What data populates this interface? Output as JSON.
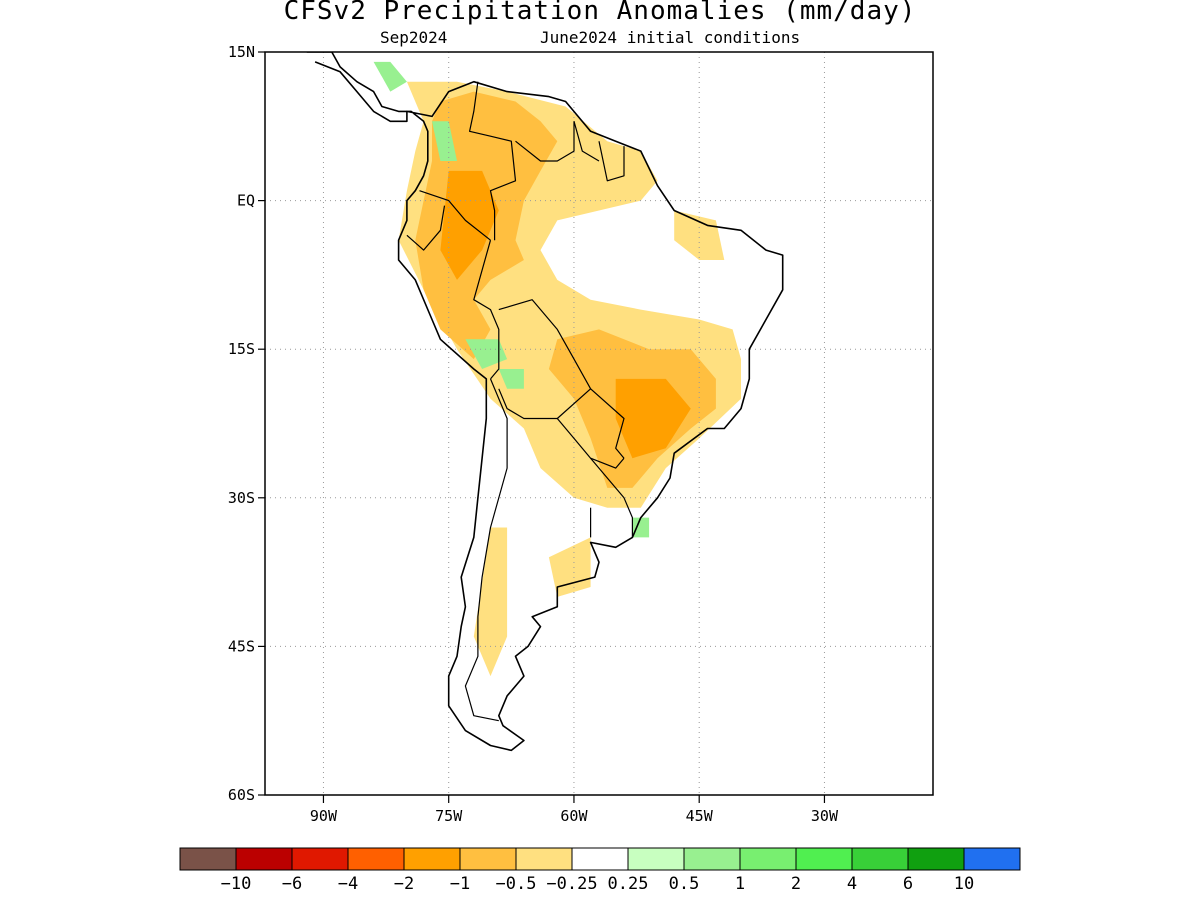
{
  "title": "CFSv2 Precipitation Anomalies (mm/day)",
  "subtitle_left": "Sep2024",
  "subtitle_right": "June2024 initial conditions",
  "map": {
    "lon_range": [
      -97,
      -17
    ],
    "lat_range": [
      -60,
      15
    ],
    "lon_ticks": [
      {
        "value": -90,
        "label": "90W"
      },
      {
        "value": -75,
        "label": "75W"
      },
      {
        "value": -60,
        "label": "60W"
      },
      {
        "value": -45,
        "label": "45W"
      },
      {
        "value": -30,
        "label": "30W"
      }
    ],
    "lat_ticks": [
      {
        "value": 15,
        "label": "15N"
      },
      {
        "value": 0,
        "label": "EQ"
      },
      {
        "value": -15,
        "label": "15S"
      },
      {
        "value": -30,
        "label": "30S"
      },
      {
        "value": -45,
        "label": "45S"
      },
      {
        "value": -60,
        "label": "60S"
      }
    ],
    "grid": "dotted"
  },
  "colorbar": {
    "colors": [
      "#7a5248",
      "#bb0000",
      "#e01800",
      "#ff6000",
      "#ffa000",
      "#ffbf40",
      "#ffe080",
      "#ffffff",
      "#c8ffc0",
      "#98f090",
      "#78ef70",
      "#50ef50",
      "#38d038",
      "#10a010",
      "#2070f0"
    ],
    "labels": [
      "−10",
      "−6",
      "−4",
      "−2",
      "−1",
      "−0.5",
      "−0.25",
      "0.25",
      "0.5",
      "1",
      "2",
      "4",
      "6",
      "10"
    ]
  },
  "chart_data": {
    "type": "heatmap",
    "title": "CFSv2 Precipitation Anomalies (mm/day)",
    "subtitle": "Sep2024  June2024 initial conditions",
    "units": "mm/day",
    "x_axis": "longitude",
    "y_axis": "latitude",
    "xlim": [
      -97,
      -17
    ],
    "ylim": [
      -60,
      15
    ],
    "levels": [
      -10,
      -6,
      -4,
      -2,
      -1,
      -0.5,
      -0.25,
      0.25,
      0.5,
      1,
      2,
      4,
      6,
      10
    ],
    "regions": [
      {
        "level": 6,
        "pts": [
          [
            -80,
            12
          ],
          [
            -74,
            12
          ],
          [
            -68,
            11
          ],
          [
            -61,
            9.5
          ],
          [
            -56,
            6
          ],
          [
            -52,
            5
          ],
          [
            -50,
            2
          ],
          [
            -52,
            0
          ],
          [
            -57,
            -1
          ],
          [
            -62,
            -2
          ],
          [
            -64,
            -5
          ],
          [
            -62,
            -8
          ],
          [
            -58,
            -10
          ],
          [
            -52,
            -11
          ],
          [
            -45,
            -12
          ],
          [
            -41,
            -13
          ],
          [
            -40,
            -16
          ],
          [
            -40,
            -20
          ],
          [
            -45,
            -24
          ],
          [
            -49,
            -27
          ],
          [
            -52,
            -31
          ],
          [
            -56,
            -31
          ],
          [
            -60,
            -30
          ],
          [
            -64,
            -27
          ],
          [
            -66,
            -23
          ],
          [
            -70,
            -20
          ],
          [
            -74,
            -15
          ],
          [
            -78,
            -9
          ],
          [
            -81,
            -4
          ],
          [
            -80,
            1
          ],
          [
            -79,
            5
          ],
          [
            -78,
            8
          ]
        ]
      },
      {
        "level": 6,
        "pts": [
          [
            -48,
            -1
          ],
          [
            -43,
            -2
          ],
          [
            -42,
            -6
          ],
          [
            -45,
            -6
          ],
          [
            -48,
            -4
          ]
        ]
      },
      {
        "level": 6,
        "pts": [
          [
            -63,
            -36
          ],
          [
            -58,
            -34
          ],
          [
            -58,
            -39
          ],
          [
            -62,
            -40
          ]
        ]
      },
      {
        "level": 6,
        "pts": [
          [
            -70,
            -33
          ],
          [
            -68,
            -33
          ],
          [
            -68,
            -44
          ],
          [
            -70,
            -48
          ],
          [
            -72,
            -44
          ]
        ]
      },
      {
        "level": 5,
        "pts": [
          [
            -76,
            10
          ],
          [
            -72,
            11
          ],
          [
            -67,
            10
          ],
          [
            -64,
            8
          ],
          [
            -62,
            6
          ],
          [
            -64,
            3
          ],
          [
            -66,
            0
          ],
          [
            -67,
            -4
          ],
          [
            -66,
            -6
          ],
          [
            -70,
            -8
          ],
          [
            -72,
            -10
          ],
          [
            -70,
            -13
          ],
          [
            -72,
            -16
          ],
          [
            -76,
            -13
          ],
          [
            -78,
            -9
          ],
          [
            -79,
            -4
          ],
          [
            -78,
            0
          ],
          [
            -77,
            4
          ],
          [
            -77,
            8
          ]
        ]
      },
      {
        "level": 5,
        "pts": [
          [
            -62,
            -14
          ],
          [
            -57,
            -13
          ],
          [
            -51,
            -15
          ],
          [
            -46,
            -15
          ],
          [
            -43,
            -18
          ],
          [
            -43,
            -21
          ],
          [
            -46,
            -23
          ],
          [
            -50,
            -26
          ],
          [
            -53,
            -29
          ],
          [
            -56,
            -29
          ],
          [
            -58,
            -24
          ],
          [
            -60,
            -20
          ],
          [
            -63,
            -17
          ]
        ]
      },
      {
        "level": 4,
        "pts": [
          [
            -75,
            3
          ],
          [
            -71,
            3
          ],
          [
            -69,
            -1
          ],
          [
            -71,
            -5
          ],
          [
            -74,
            -8
          ],
          [
            -76,
            -5
          ]
        ]
      },
      {
        "level": 4,
        "pts": [
          [
            -55,
            -18
          ],
          [
            -49,
            -18
          ],
          [
            -46,
            -21
          ],
          [
            -49,
            -25
          ],
          [
            -53,
            -26
          ],
          [
            -55,
            -22
          ]
        ]
      },
      {
        "level": 9,
        "pts": [
          [
            -73,
            -14
          ],
          [
            -69,
            -14
          ],
          [
            -68,
            -16
          ],
          [
            -71,
            -17
          ]
        ]
      },
      {
        "level": 9,
        "pts": [
          [
            -69,
            -17
          ],
          [
            -66,
            -17
          ],
          [
            -66,
            -19
          ],
          [
            -68,
            -19
          ]
        ]
      },
      {
        "level": 9,
        "pts": [
          [
            -77,
            8
          ],
          [
            -75,
            8
          ],
          [
            -74,
            4
          ],
          [
            -76,
            4
          ]
        ]
      },
      {
        "level": 9,
        "pts": [
          [
            -84,
            14
          ],
          [
            -82,
            14
          ],
          [
            -80,
            12
          ],
          [
            -82,
            11
          ]
        ]
      },
      {
        "level": 9,
        "pts": [
          [
            -53,
            -32
          ],
          [
            -51,
            -32
          ],
          [
            -51,
            -34
          ],
          [
            -53,
            -34
          ]
        ]
      }
    ],
    "coastline": [
      [
        -80,
        9
      ],
      [
        -77,
        8.5
      ],
      [
        -75,
        11
      ],
      [
        -72,
        12
      ],
      [
        -68,
        11
      ],
      [
        -63,
        10.5
      ],
      [
        -61,
        10
      ],
      [
        -58,
        7
      ],
      [
        -55,
        6
      ],
      [
        -52,
        5
      ],
      [
        -50,
        1.5
      ],
      [
        -48,
        -1
      ],
      [
        -44,
        -2.5
      ],
      [
        -40,
        -3
      ],
      [
        -37,
        -5
      ],
      [
        -35,
        -5.5
      ],
      [
        -35,
        -9
      ],
      [
        -37,
        -12
      ],
      [
        -39,
        -15
      ],
      [
        -39,
        -18
      ],
      [
        -40,
        -21
      ],
      [
        -42,
        -23
      ],
      [
        -44,
        -23
      ],
      [
        -48,
        -25.5
      ],
      [
        -48.5,
        -28
      ],
      [
        -50,
        -30
      ],
      [
        -52,
        -32
      ],
      [
        -53,
        -34
      ],
      [
        -55,
        -35
      ],
      [
        -58,
        -34.5
      ],
      [
        -57,
        -36.5
      ],
      [
        -57.5,
        -38
      ],
      [
        -62,
        -39
      ],
      [
        -62,
        -41
      ],
      [
        -65,
        -42
      ],
      [
        -64,
        -43
      ],
      [
        -65.5,
        -45
      ],
      [
        -67,
        -46
      ],
      [
        -66,
        -48
      ],
      [
        -68,
        -50
      ],
      [
        -69,
        -52
      ],
      [
        -68.5,
        -53
      ],
      [
        -66,
        -54.5
      ],
      [
        -67.5,
        -55.5
      ],
      [
        -70,
        -55
      ],
      [
        -73,
        -53.5
      ],
      [
        -75,
        -51
      ],
      [
        -75,
        -48
      ],
      [
        -74,
        -46
      ],
      [
        -73.5,
        -43
      ],
      [
        -73,
        -41
      ],
      [
        -73.5,
        -38
      ],
      [
        -72,
        -34
      ],
      [
        -71.5,
        -30
      ],
      [
        -71,
        -26
      ],
      [
        -70.5,
        -22
      ],
      [
        -70.5,
        -18
      ],
      [
        -72,
        -17
      ],
      [
        -76,
        -14
      ],
      [
        -77,
        -12
      ],
      [
        -79,
        -8
      ],
      [
        -81,
        -6
      ],
      [
        -81,
        -4
      ],
      [
        -80,
        -2
      ],
      [
        -80,
        0
      ],
      [
        -79,
        1
      ],
      [
        -78,
        2.5
      ],
      [
        -77.5,
        4
      ],
      [
        -77.5,
        7
      ],
      [
        -78,
        8
      ],
      [
        -79.5,
        9
      ]
    ],
    "central_america": [
      [
        -92,
        15
      ],
      [
        -89,
        15
      ],
      [
        -88,
        13.5
      ],
      [
        -86,
        12
      ],
      [
        -84,
        11
      ],
      [
        -83,
        9.5
      ],
      [
        -81,
        9
      ],
      [
        -80,
        9
      ],
      [
        -80,
        8
      ],
      [
        -82,
        8
      ],
      [
        -84,
        9
      ],
      [
        -86,
        11
      ],
      [
        -88,
        13
      ],
      [
        -91,
        14
      ]
    ],
    "borders": [
      [
        [
          -71.5,
          12
        ],
        [
          -72,
          9
        ],
        [
          -72.5,
          7
        ],
        [
          -70,
          6.5
        ],
        [
          -67.5,
          6
        ],
        [
          -67,
          2
        ],
        [
          -70,
          1
        ],
        [
          -69.5,
          -1
        ],
        [
          -69.5,
          -4
        ]
      ],
      [
        [
          -78.5,
          1
        ],
        [
          -75,
          0
        ],
        [
          -73,
          -2
        ],
        [
          -70,
          -4
        ]
      ],
      [
        [
          -80,
          -3.5
        ],
        [
          -78,
          -5
        ],
        [
          -76,
          -3
        ],
        [
          -75.5,
          -0.5
        ]
      ],
      [
        [
          -67,
          6
        ],
        [
          -64,
          4
        ],
        [
          -62,
          4
        ],
        [
          -60,
          5
        ],
        [
          -60,
          8
        ]
      ],
      [
        [
          -60,
          8
        ],
        [
          -59,
          5
        ],
        [
          -57,
          4
        ]
      ],
      [
        [
          -57,
          6
        ],
        [
          -56,
          2
        ],
        [
          -54,
          2.5
        ],
        [
          -54,
          5.5
        ]
      ],
      [
        [
          -70,
          -4
        ],
        [
          -72,
          -10
        ],
        [
          -70,
          -11
        ],
        [
          -69,
          -13
        ],
        [
          -69,
          -17
        ],
        [
          -70,
          -18
        ]
      ],
      [
        [
          -69,
          -11
        ],
        [
          -65,
          -10
        ],
        [
          -62,
          -13
        ],
        [
          -60,
          -16
        ],
        [
          -58,
          -19
        ],
        [
          -62,
          -22
        ],
        [
          -66,
          -22
        ],
        [
          -68,
          -21
        ],
        [
          -69,
          -19
        ]
      ],
      [
        [
          -58,
          -19
        ],
        [
          -54,
          -22
        ],
        [
          -55,
          -25
        ],
        [
          -54,
          -26
        ]
      ],
      [
        [
          -62,
          -22
        ],
        [
          -60,
          -24
        ],
        [
          -58,
          -26
        ],
        [
          -55,
          -27
        ],
        [
          -54,
          -26
        ]
      ],
      [
        [
          -58,
          -26
        ],
        [
          -56,
          -28
        ],
        [
          -54,
          -30
        ],
        [
          -53,
          -32
        ],
        [
          -53,
          -34
        ]
      ],
      [
        [
          -58,
          -31
        ],
        [
          -58,
          -34
        ]
      ],
      [
        [
          -70,
          -18
        ],
        [
          -68,
          -22
        ],
        [
          -68,
          -27
        ],
        [
          -70,
          -33
        ],
        [
          -71,
          -38
        ],
        [
          -71.5,
          -42
        ],
        [
          -71.5,
          -46
        ],
        [
          -73,
          -49
        ],
        [
          -72,
          -52
        ],
        [
          -69,
          -52.5
        ]
      ]
    ]
  }
}
